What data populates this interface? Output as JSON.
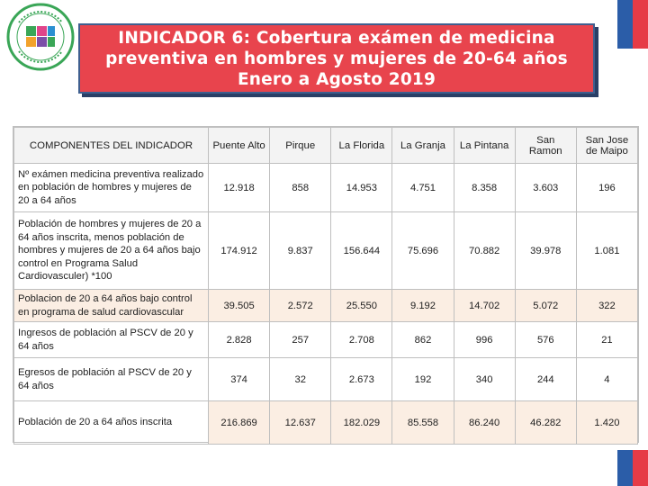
{
  "title": {
    "line1": "INDICADOR 6: Cobertura exámen de medicina",
    "line2": "preventiva en hombres y mujeres de 20-64 años",
    "line3": "Enero a Agosto 2019"
  },
  "table": {
    "headers": [
      "COMPONENTES DEL INDICADOR",
      "Puente Alto",
      "Pirque",
      "La Florida",
      "La Granja",
      "La Pintana",
      "San Ramon",
      "San Jose de Maipo"
    ],
    "rows": [
      {
        "label": "Nº exámen medicina preventiva realizado en población de hombres y mujeres de 20 a 64 años",
        "values": [
          "12.918",
          "858",
          "14.953",
          "4.751",
          "8.358",
          "3.603",
          "196"
        ]
      },
      {
        "label": "Población de hombres y mujeres de 20 a 64 años inscrita, menos población de hombres y mujeres de 20 a 64 años bajo control en Programa Salud Cardiovasculer) *100",
        "values": [
          "174.912",
          "9.837",
          "156.644",
          "75.696",
          "70.882",
          "39.978",
          "1.081"
        ]
      },
      {
        "label": "Poblacion de 20 a 64 años bajo control en programa de salud cardiovascular",
        "values": [
          "39.505",
          "2.572",
          "25.550",
          "9.192",
          "14.702",
          "5.072",
          "322"
        ]
      },
      {
        "label": "Ingresos de población al PSCV de 20 y 64 años",
        "values": [
          "2.828",
          "257",
          "2.708",
          "862",
          "996",
          "576",
          "21"
        ]
      },
      {
        "label": "Egresos de población al PSCV de 20 y 64 años",
        "values": [
          "374",
          "32",
          "2.673",
          "192",
          "340",
          "244",
          "4"
        ]
      },
      {
        "label": "Población de 20 a 64 años inscrita",
        "values": [
          "216.869",
          "12.637",
          "182.029",
          "85.558",
          "86.240",
          "46.282",
          "1.420"
        ]
      }
    ]
  },
  "logo": {
    "text": "Servicio de Salud Metropolitano Sur Oriente"
  },
  "colors": {
    "title_bg": "#e8444d",
    "title_border": "#3f5f8f",
    "flag_blue": "#2b5da8",
    "flag_red": "#e63b46",
    "logo_green": "#3aa657"
  }
}
